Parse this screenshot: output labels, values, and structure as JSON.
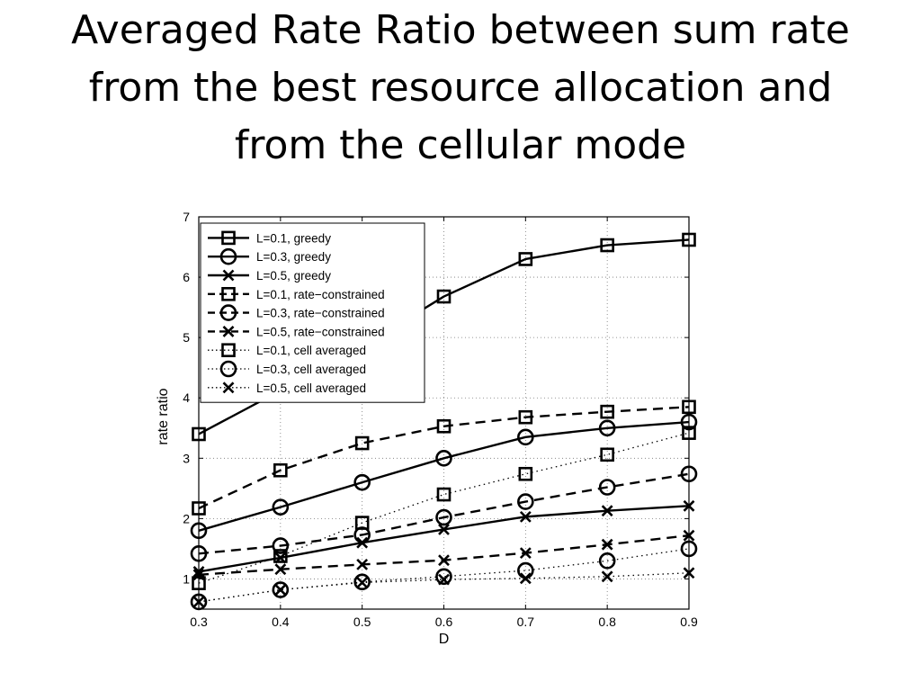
{
  "slide": {
    "title_lines": [
      "Averaged Rate Ratio between sum rate",
      "from the best resource allocation and",
      "from the cellular mode"
    ]
  },
  "chart_data": {
    "type": "line",
    "title": "",
    "xlabel": "D",
    "ylabel": "rate ratio",
    "xlim": [
      0.3,
      0.9
    ],
    "ylim": [
      0.5,
      7
    ],
    "xticks": [
      "0.3",
      "0.4",
      "0.5",
      "0.6",
      "0.7",
      "0.8",
      "0.9"
    ],
    "yticks": [
      "1",
      "2",
      "3",
      "4",
      "5",
      "6",
      "7"
    ],
    "grid": true,
    "legend_position": "top-left",
    "x": [
      0.3,
      0.4,
      0.5,
      0.6,
      0.7,
      0.8,
      0.9
    ],
    "series": [
      {
        "name": "L=0.1, greedy",
        "style": "solid",
        "marker": "square",
        "values": [
          3.4,
          4.12,
          4.85,
          5.68,
          6.3,
          6.53,
          6.62
        ]
      },
      {
        "name": "L=0.3, greedy",
        "style": "solid",
        "marker": "circle",
        "values": [
          1.8,
          2.19,
          2.6,
          3.0,
          3.35,
          3.5,
          3.6
        ]
      },
      {
        "name": "L=0.5, greedy",
        "style": "solid",
        "marker": "x",
        "values": [
          1.12,
          1.35,
          1.6,
          1.82,
          2.03,
          2.13,
          2.21
        ]
      },
      {
        "name": "L=0.1, rate−constrained",
        "style": "dashed",
        "marker": "square",
        "values": [
          2.17,
          2.8,
          3.25,
          3.53,
          3.68,
          3.77,
          3.85
        ]
      },
      {
        "name": "L=0.3, rate−constrained",
        "style": "dashed",
        "marker": "circle",
        "values": [
          1.42,
          1.55,
          1.73,
          2.02,
          2.28,
          2.52,
          2.74
        ]
      },
      {
        "name": "L=0.5, rate−constrained",
        "style": "dashed",
        "marker": "x",
        "values": [
          1.07,
          1.16,
          1.24,
          1.31,
          1.43,
          1.57,
          1.72
        ]
      },
      {
        "name": "L=0.1, cell averaged",
        "style": "dotted",
        "marker": "square",
        "values": [
          0.93,
          1.38,
          1.93,
          2.4,
          2.74,
          3.06,
          3.42
        ]
      },
      {
        "name": "L=0.3, cell averaged",
        "style": "dotted",
        "marker": "circle",
        "values": [
          0.62,
          0.82,
          0.95,
          1.04,
          1.14,
          1.3,
          1.5
        ]
      },
      {
        "name": "L=0.5, cell averaged",
        "style": "dotted",
        "marker": "x",
        "values": [
          0.62,
          0.82,
          0.94,
          0.99,
          1.01,
          1.04,
          1.1
        ]
      }
    ]
  }
}
